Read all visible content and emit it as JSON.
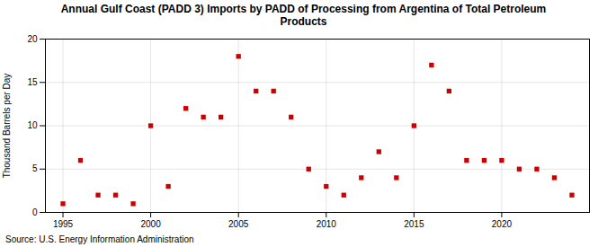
{
  "chart_data": {
    "type": "scatter",
    "title": "Annual Gulf Coast (PADD 3) Imports by PADD of Processing from Argentina of Total Petroleum\nProducts",
    "ylabel": "Thousand Barrels per Day",
    "source": "Source: U.S. Energy Information Administration",
    "x": [
      1995,
      1996,
      1997,
      1998,
      1999,
      2000,
      2001,
      2002,
      2003,
      2004,
      2005,
      2006,
      2007,
      2008,
      2009,
      2010,
      2011,
      2012,
      2013,
      2014,
      2015,
      2016,
      2017,
      2018,
      2019,
      2020,
      2021,
      2022,
      2023,
      2024
    ],
    "values": [
      1,
      6,
      2,
      2,
      1,
      10,
      3,
      12,
      11,
      11,
      18,
      14,
      14,
      11,
      5,
      3,
      2,
      4,
      7,
      4,
      10,
      17,
      14,
      6,
      6,
      6,
      5,
      5,
      4,
      2
    ],
    "color": "#cc0000",
    "marker": "square",
    "xlim": [
      1994,
      2025
    ],
    "ylim": [
      0,
      20
    ],
    "xticks": [
      1995,
      2000,
      2005,
      2010,
      2015,
      2020
    ],
    "yticks": [
      0,
      5,
      10,
      15,
      20
    ],
    "grid": true
  }
}
